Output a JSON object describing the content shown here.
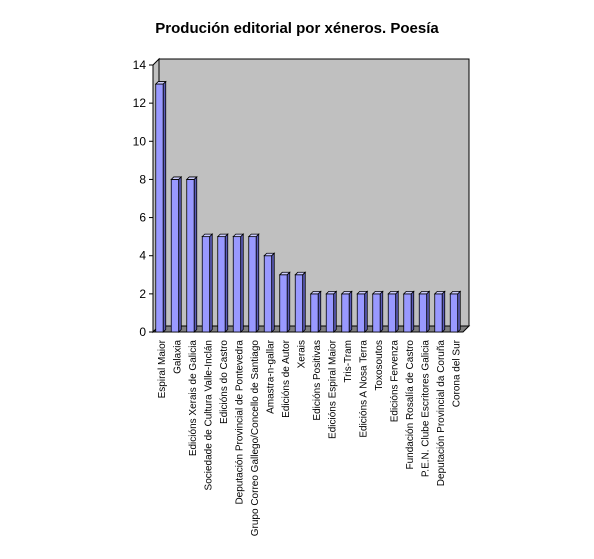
{
  "chart_data": {
    "type": "bar",
    "title": "Produción editorial por xéneros. Poesía",
    "xlabel": "",
    "ylabel": "",
    "ylim": [
      0,
      14
    ],
    "yticks": [
      "0",
      "2",
      "4",
      "6",
      "8",
      "10",
      "12",
      "14"
    ],
    "categories": [
      "Espiral Maior",
      "Galaxia",
      "Edicións Xerais de Galicia",
      "Sociedade de Cultura Valle-Inclán",
      "Edicións do Castro",
      "Deputación Provincial de Pontevedra",
      "Grupo Correo Gallego/Concello de Santiago",
      "Amastra-n-gallar",
      "Edicións de Autor",
      "Xerais",
      "Edicións Positivas",
      "Edicións Espiral Maior",
      "Tris-Tram",
      "Edicións A Nosa Terra",
      "Toxosoutos",
      "Edicións Fervenza",
      "Fundación Rosalía de Castro",
      "P.E.N. Clube Escritores Galicia",
      "Deputación Provincial da Coruña",
      "Corona del Sur"
    ],
    "values": [
      13,
      8,
      8,
      5,
      5,
      5,
      5,
      4,
      3,
      3,
      2,
      2,
      2,
      2,
      2,
      2,
      2,
      2,
      2,
      2
    ],
    "grid": false,
    "legend": "none",
    "colors": {
      "bar_front": "#9999ff",
      "bar_top": "#ccccff",
      "bar_side": "#5c5cb8",
      "plot_back": "#c0c0c0",
      "plot_floor": "#808080"
    }
  }
}
